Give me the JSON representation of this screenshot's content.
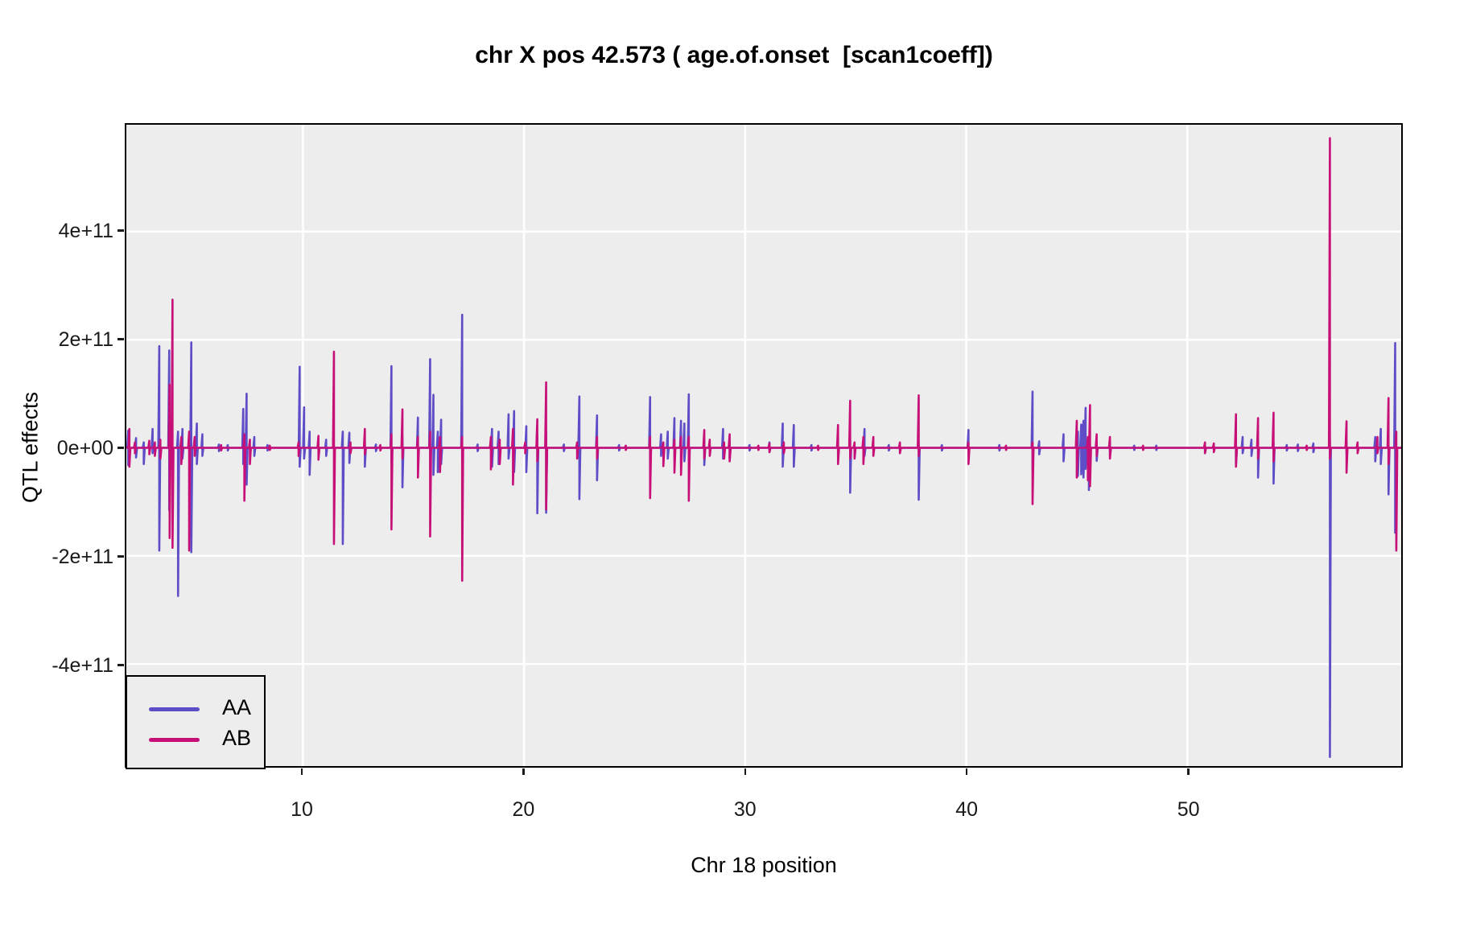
{
  "title": "chr X pos 42.573 ( age.of.onset  [scan1coeff])",
  "chart_data": {
    "type": "line",
    "title": "chr X pos 42.573 ( age.of.onset  [scan1coeff])",
    "xlabel": "Chr 18 position",
    "ylabel": "QTL effects",
    "xlim": [
      2.05,
      59.65
    ],
    "ylim_e11": [
      -5.9,
      5.95
    ],
    "x_ticks": [
      10,
      20,
      30,
      40,
      50
    ],
    "y_ticks": [
      {
        "label": "4e+11",
        "value_e11": 4
      },
      {
        "label": "2e+11",
        "value_e11": 2
      },
      {
        "label": "0e+00",
        "value_e11": 0
      },
      {
        "label": "-2e+11",
        "value_e11": -2
      },
      {
        "label": "-4e+11",
        "value_e11": -4
      }
    ],
    "grid": {
      "major_color": "#ffffff",
      "panel_bg": "#ededed",
      "minor": false
    },
    "legend": {
      "position": "bottom-left",
      "entries": [
        {
          "label": "AA",
          "color": "#5d4dc6"
        },
        {
          "label": "AB",
          "color": "#c70f78"
        }
      ]
    },
    "spike_units": "1e11",
    "spike_format": "[x_position, peak_up, peak_down]",
    "series": [
      {
        "name": "AA",
        "color": "#5d4dc6",
        "baseline": 0,
        "spikes": [
          [
            2.1,
            0.32,
            -0.32
          ],
          [
            2.45,
            0.18,
            -0.18
          ],
          [
            2.8,
            0.1,
            -0.3
          ],
          [
            3.2,
            0.35,
            -0.1
          ],
          [
            3.5,
            1.88,
            -1.9
          ],
          [
            3.95,
            1.8,
            -1.15
          ],
          [
            4.35,
            0.3,
            -2.74
          ],
          [
            4.55,
            0.35,
            -0.2
          ],
          [
            4.95,
            1.95,
            -1.93
          ],
          [
            5.2,
            0.45,
            -0.3
          ],
          [
            5.45,
            0.25,
            -0.15
          ],
          [
            6.2,
            0.06,
            -0.06
          ],
          [
            6.6,
            0.05,
            -0.05
          ],
          [
            7.3,
            0.72,
            -0.3
          ],
          [
            7.45,
            1.0,
            -0.68
          ],
          [
            7.8,
            0.2,
            -0.15
          ],
          [
            8.4,
            0.05,
            -0.05
          ],
          [
            9.85,
            1.5,
            -0.35
          ],
          [
            10.05,
            0.75,
            -0.2
          ],
          [
            10.3,
            0.3,
            -0.5
          ],
          [
            11.05,
            0.15,
            -0.15
          ],
          [
            11.8,
            0.3,
            -1.78
          ],
          [
            12.1,
            0.28,
            -0.28
          ],
          [
            12.8,
            0.1,
            -0.35
          ],
          [
            13.3,
            0.06,
            -0.06
          ],
          [
            14.0,
            1.51,
            -0.3
          ],
          [
            14.5,
            0.2,
            -0.73
          ],
          [
            15.2,
            0.56,
            -0.2
          ],
          [
            15.75,
            1.64,
            -0.4
          ],
          [
            15.9,
            0.98,
            -0.5
          ],
          [
            16.1,
            0.3,
            -0.45
          ],
          [
            16.25,
            0.52,
            -0.3
          ],
          [
            17.2,
            2.46,
            -0.25
          ],
          [
            17.9,
            0.06,
            -0.06
          ],
          [
            18.55,
            0.35,
            -0.35
          ],
          [
            18.85,
            0.3,
            -0.3
          ],
          [
            19.3,
            0.62,
            -0.2
          ],
          [
            19.55,
            0.68,
            -0.45
          ],
          [
            20.1,
            0.4,
            -0.45
          ],
          [
            20.6,
            0.2,
            -1.21
          ],
          [
            21.0,
            0.3,
            -1.2
          ],
          [
            21.8,
            0.06,
            -0.06
          ],
          [
            22.5,
            0.95,
            -0.95
          ],
          [
            23.3,
            0.6,
            -0.6
          ],
          [
            24.3,
            0.05,
            -0.05
          ],
          [
            25.7,
            0.94,
            -0.3
          ],
          [
            26.2,
            0.25,
            -0.15
          ],
          [
            26.5,
            0.3,
            -0.2
          ],
          [
            26.8,
            0.55,
            -0.2
          ],
          [
            27.1,
            0.5,
            -0.3
          ],
          [
            27.25,
            0.45,
            -0.25
          ],
          [
            27.45,
            0.99,
            -0.35
          ],
          [
            28.15,
            0.15,
            -0.32
          ],
          [
            29.0,
            0.35,
            -0.2
          ],
          [
            29.3,
            0.15,
            -0.2
          ],
          [
            30.2,
            0.05,
            -0.05
          ],
          [
            31.1,
            0.1,
            -0.08
          ],
          [
            31.7,
            0.45,
            -0.35
          ],
          [
            32.2,
            0.42,
            -0.35
          ],
          [
            33.0,
            0.05,
            -0.05
          ],
          [
            34.2,
            0.2,
            -0.2
          ],
          [
            34.75,
            0.15,
            -0.83
          ],
          [
            35.4,
            0.35,
            -0.15
          ],
          [
            36.5,
            0.05,
            -0.05
          ],
          [
            37.0,
            0.08,
            -0.08
          ],
          [
            37.85,
            0.1,
            -0.96
          ],
          [
            38.9,
            0.05,
            -0.05
          ],
          [
            40.1,
            0.33,
            -0.1
          ],
          [
            41.5,
            0.05,
            -0.05
          ],
          [
            43.0,
            1.04,
            -0.4
          ],
          [
            43.3,
            0.12,
            -0.12
          ],
          [
            44.4,
            0.25,
            -0.25
          ],
          [
            45.05,
            0.3,
            -0.52
          ],
          [
            45.2,
            0.43,
            -0.49
          ],
          [
            45.3,
            0.5,
            -0.55
          ],
          [
            45.4,
            0.74,
            -0.39
          ],
          [
            45.55,
            0.2,
            -0.78
          ],
          [
            45.9,
            0.1,
            -0.24
          ],
          [
            46.5,
            0.1,
            -0.15
          ],
          [
            47.6,
            0.04,
            -0.04
          ],
          [
            48.6,
            0.04,
            -0.04
          ],
          [
            50.8,
            0.08,
            -0.08
          ],
          [
            52.2,
            0.25,
            -0.3
          ],
          [
            52.5,
            0.2,
            -0.1
          ],
          [
            52.9,
            0.15,
            -0.15
          ],
          [
            53.2,
            0.1,
            -0.55
          ],
          [
            53.9,
            0.1,
            -0.66
          ],
          [
            54.5,
            0.05,
            -0.05
          ],
          [
            55.0,
            0.06,
            -0.06
          ],
          [
            55.7,
            0.08,
            -0.08
          ],
          [
            56.45,
            0.15,
            -5.72
          ],
          [
            57.2,
            0.1,
            -0.1
          ],
          [
            58.5,
            0.2,
            -0.25
          ],
          [
            58.75,
            0.35,
            -0.3
          ],
          [
            59.1,
            0.1,
            -0.86
          ],
          [
            59.4,
            1.94,
            -1.57
          ]
        ]
      },
      {
        "name": "AB",
        "color": "#c70f78",
        "baseline": 0,
        "spikes": [
          [
            2.15,
            0.35,
            -0.35
          ],
          [
            2.4,
            0.1,
            -0.1
          ],
          [
            3.05,
            0.13,
            -0.12
          ],
          [
            3.3,
            0.1,
            -0.15
          ],
          [
            3.55,
            0.15,
            -0.2
          ],
          [
            3.97,
            1.17,
            -1.67
          ],
          [
            4.1,
            2.74,
            -1.85
          ],
          [
            4.5,
            0.2,
            -0.3
          ],
          [
            4.85,
            0.3,
            -1.9
          ],
          [
            5.1,
            0.2,
            -0.15
          ],
          [
            6.3,
            0.05,
            -0.05
          ],
          [
            7.35,
            0.25,
            -0.98
          ],
          [
            7.6,
            0.15,
            -0.3
          ],
          [
            8.5,
            0.04,
            -0.04
          ],
          [
            9.8,
            0.1,
            -0.15
          ],
          [
            10.7,
            0.22,
            -0.22
          ],
          [
            11.4,
            1.78,
            -1.78
          ],
          [
            12.15,
            0.1,
            -0.1
          ],
          [
            12.8,
            0.35,
            -0.12
          ],
          [
            13.5,
            0.05,
            -0.05
          ],
          [
            14.0,
            0.25,
            -1.51
          ],
          [
            14.5,
            0.71,
            -0.2
          ],
          [
            15.2,
            0.2,
            -0.55
          ],
          [
            15.75,
            0.3,
            -1.64
          ],
          [
            16.2,
            0.2,
            -0.45
          ],
          [
            17.2,
            0.2,
            -2.46
          ],
          [
            18.5,
            0.2,
            -0.4
          ],
          [
            18.9,
            0.15,
            -0.3
          ],
          [
            19.5,
            0.35,
            -0.68
          ],
          [
            20.05,
            0.1,
            -0.1
          ],
          [
            20.6,
            0.53,
            -0.25
          ],
          [
            21.0,
            1.21,
            -1.14
          ],
          [
            22.4,
            0.1,
            -0.2
          ],
          [
            23.3,
            0.2,
            -0.2
          ],
          [
            24.6,
            0.04,
            -0.04
          ],
          [
            25.7,
            0.2,
            -0.93
          ],
          [
            26.3,
            0.1,
            -0.34
          ],
          [
            26.8,
            0.15,
            -0.46
          ],
          [
            27.1,
            0.2,
            -0.5
          ],
          [
            27.45,
            0.2,
            -0.98
          ],
          [
            28.15,
            0.33,
            -0.2
          ],
          [
            28.4,
            0.15,
            -0.15
          ],
          [
            29.05,
            0.1,
            -0.2
          ],
          [
            29.3,
            0.25,
            -0.25
          ],
          [
            30.6,
            0.04,
            -0.04
          ],
          [
            31.1,
            0.08,
            -0.08
          ],
          [
            31.75,
            0.1,
            -0.1
          ],
          [
            33.3,
            0.04,
            -0.04
          ],
          [
            34.2,
            0.42,
            -0.3
          ],
          [
            34.75,
            0.87,
            -0.2
          ],
          [
            34.95,
            0.1,
            -0.2
          ],
          [
            35.35,
            0.2,
            -0.3
          ],
          [
            35.8,
            0.2,
            -0.15
          ],
          [
            37.0,
            0.1,
            -0.1
          ],
          [
            37.85,
            0.97,
            -0.15
          ],
          [
            40.1,
            0.1,
            -0.3
          ],
          [
            41.8,
            0.04,
            -0.04
          ],
          [
            43.0,
            0.1,
            -1.04
          ],
          [
            45.0,
            0.5,
            -0.55
          ],
          [
            45.5,
            0.2,
            -0.6
          ],
          [
            45.6,
            0.79,
            -0.71
          ],
          [
            45.9,
            0.25,
            -0.15
          ],
          [
            46.5,
            0.2,
            -0.2
          ],
          [
            48.0,
            0.04,
            -0.04
          ],
          [
            50.8,
            0.1,
            -0.1
          ],
          [
            51.2,
            0.08,
            -0.08
          ],
          [
            52.2,
            0.62,
            -0.35
          ],
          [
            53.2,
            0.55,
            -0.2
          ],
          [
            53.9,
            0.65,
            -0.25
          ],
          [
            55.4,
            0.04,
            -0.04
          ],
          [
            56.45,
            5.73,
            -0.2
          ],
          [
            57.2,
            0.49,
            -0.46
          ],
          [
            57.7,
            0.1,
            -0.1
          ],
          [
            58.6,
            0.2,
            -0.1
          ],
          [
            59.1,
            0.92,
            -0.3
          ],
          [
            59.45,
            0.3,
            -1.9
          ]
        ]
      }
    ]
  }
}
